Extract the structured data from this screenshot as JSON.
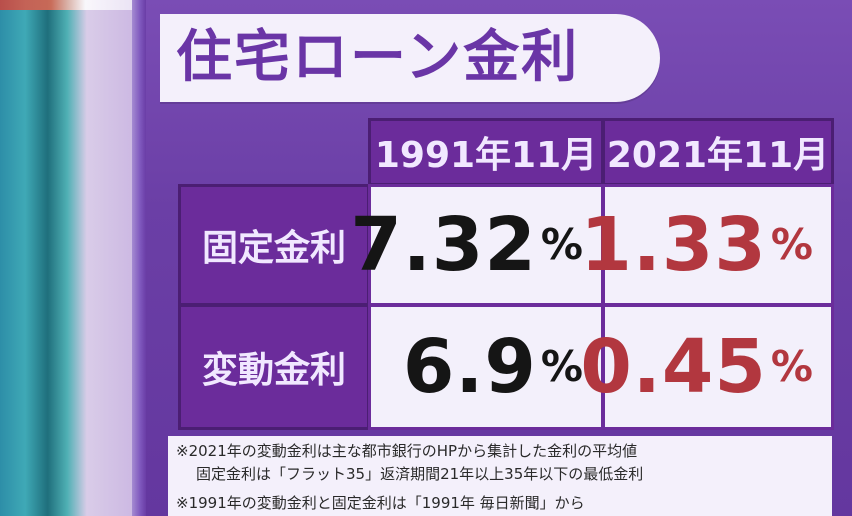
{
  "title": "住宅ローン金利",
  "table": {
    "columns": [
      "1991年11月",
      "2021年11月"
    ],
    "rows": [
      {
        "label": "固定金利",
        "values": [
          {
            "number": "7.32",
            "unit": "%"
          },
          {
            "number": "1.33",
            "unit": "%"
          }
        ]
      },
      {
        "label": "変動金利",
        "values": [
          {
            "number": "6.9",
            "unit": "%"
          },
          {
            "number": "0.45",
            "unit": "%"
          }
        ]
      }
    ]
  },
  "notes": [
    "※2021年の変動金利は主な都市銀行のHPから集計した金利の平均値",
    "固定金利は「フラット35」返済期間21年以上35年以下の最低金利",
    "※1991年の変動金利と固定金利は「1991年 毎日新聞」から"
  ],
  "colors": {
    "header_purple": "#6b2c9b",
    "value_old": "#151515",
    "value_new": "#b2373f"
  }
}
